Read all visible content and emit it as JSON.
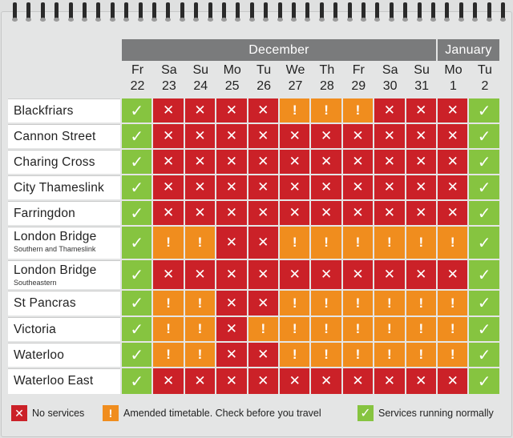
{
  "months": [
    {
      "label": "December",
      "first_col": 0,
      "span": 10
    },
    {
      "label": "January",
      "first_col": 10,
      "span": 2
    }
  ],
  "days": [
    {
      "dow": "Fr",
      "date": "22"
    },
    {
      "dow": "Sa",
      "date": "23"
    },
    {
      "dow": "Su",
      "date": "24"
    },
    {
      "dow": "Mo",
      "date": "25"
    },
    {
      "dow": "Tu",
      "date": "26"
    },
    {
      "dow": "We",
      "date": "27"
    },
    {
      "dow": "Th",
      "date": "28"
    },
    {
      "dow": "Fr",
      "date": "29"
    },
    {
      "dow": "Sa",
      "date": "30"
    },
    {
      "dow": "Su",
      "date": "31"
    },
    {
      "dow": "Mo",
      "date": "1"
    },
    {
      "dow": "Tu",
      "date": "2"
    }
  ],
  "symbols": {
    "no_service": "✕",
    "amended": "!",
    "normal": "✓"
  },
  "colors": {
    "no_service": "#cb2128",
    "amended": "#f08d1e",
    "normal": "#86c440",
    "header": "#7a7b7c"
  },
  "stations": [
    {
      "name": "Blackfriars",
      "sub": "",
      "status": [
        "G",
        "R",
        "R",
        "R",
        "R",
        "O",
        "O",
        "O",
        "R",
        "R",
        "R",
        "G"
      ]
    },
    {
      "name": "Cannon Street",
      "sub": "",
      "status": [
        "G",
        "R",
        "R",
        "R",
        "R",
        "R",
        "R",
        "R",
        "R",
        "R",
        "R",
        "G"
      ]
    },
    {
      "name": "Charing Cross",
      "sub": "",
      "status": [
        "G",
        "R",
        "R",
        "R",
        "R",
        "R",
        "R",
        "R",
        "R",
        "R",
        "R",
        "G"
      ]
    },
    {
      "name": "City Thameslink",
      "sub": "",
      "status": [
        "G",
        "R",
        "R",
        "R",
        "R",
        "R",
        "R",
        "R",
        "R",
        "R",
        "R",
        "G"
      ]
    },
    {
      "name": "Farringdon",
      "sub": "",
      "status": [
        "G",
        "R",
        "R",
        "R",
        "R",
        "R",
        "R",
        "R",
        "R",
        "R",
        "R",
        "G"
      ]
    },
    {
      "name": "London Bridge",
      "sub": "Southern and Thameslink",
      "status": [
        "G",
        "O",
        "O",
        "R",
        "R",
        "O",
        "O",
        "O",
        "O",
        "O",
        "O",
        "G"
      ]
    },
    {
      "name": "London Bridge",
      "sub": "Southeastern",
      "status": [
        "G",
        "R",
        "R",
        "R",
        "R",
        "R",
        "R",
        "R",
        "R",
        "R",
        "R",
        "G"
      ]
    },
    {
      "name": "St Pancras",
      "sub": "",
      "status": [
        "G",
        "O",
        "O",
        "R",
        "R",
        "O",
        "O",
        "O",
        "O",
        "O",
        "O",
        "G"
      ]
    },
    {
      "name": "Victoria",
      "sub": "",
      "status": [
        "G",
        "O",
        "O",
        "R",
        "O",
        "O",
        "O",
        "O",
        "O",
        "O",
        "O",
        "G"
      ]
    },
    {
      "name": "Waterloo",
      "sub": "",
      "status": [
        "G",
        "O",
        "O",
        "R",
        "R",
        "O",
        "O",
        "O",
        "O",
        "O",
        "O",
        "G"
      ]
    },
    {
      "name": "Waterloo East",
      "sub": "",
      "status": [
        "G",
        "R",
        "R",
        "R",
        "R",
        "R",
        "R",
        "R",
        "R",
        "R",
        "R",
        "G"
      ]
    }
  ],
  "legend": {
    "no_service": "No services",
    "amended": "Amended timetable. Check before you travel",
    "normal": "Services running normally"
  }
}
